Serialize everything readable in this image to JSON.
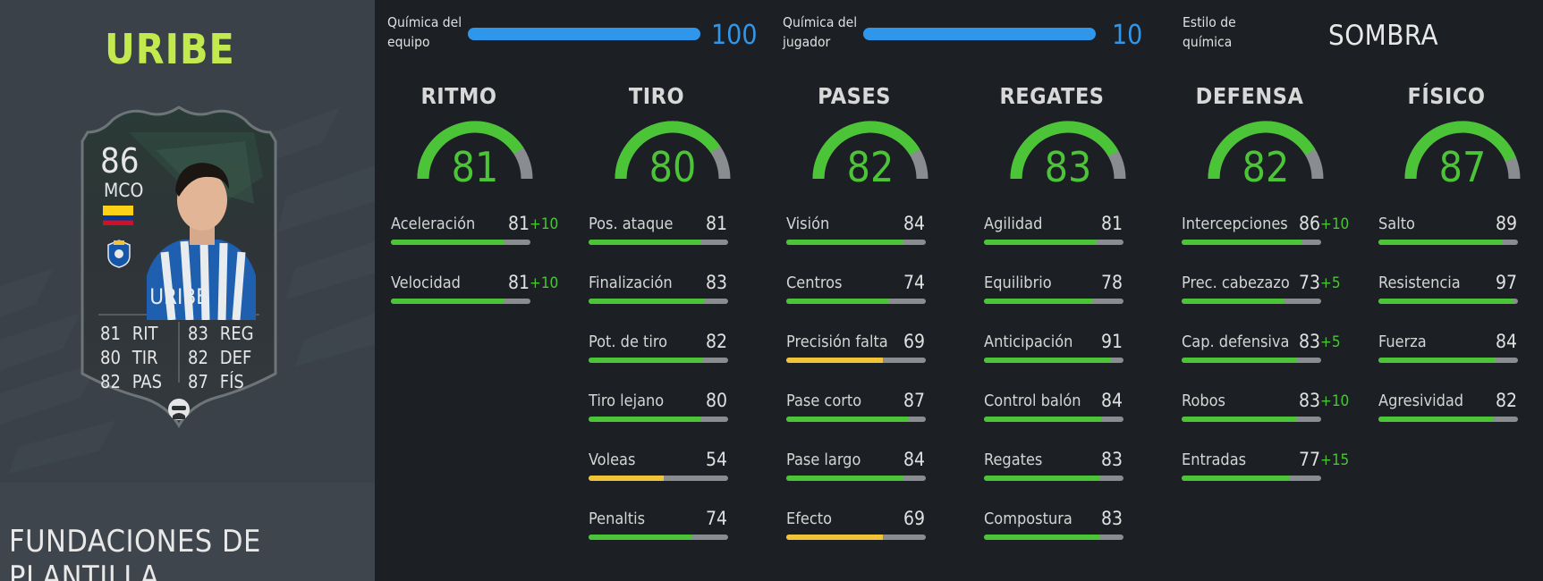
{
  "player": {
    "name": "URIBE",
    "program": "FUNDACIONES DE PLANTILLA",
    "card": {
      "rating": "86",
      "position": "MCO",
      "name": "URIBE",
      "stats": [
        {
          "value": "81",
          "label": "RIT"
        },
        {
          "value": "80",
          "label": "TIR"
        },
        {
          "value": "82",
          "label": "PAS"
        },
        {
          "value": "83",
          "label": "REG"
        },
        {
          "value": "82",
          "label": "DEF"
        },
        {
          "value": "87",
          "label": "FÍS"
        }
      ],
      "flag_colors": [
        "#fcd116",
        "#003893",
        "#ce1126"
      ]
    }
  },
  "chemistry": {
    "team_label_1": "Química del",
    "team_label_2": "equipo",
    "team_value": "100",
    "team_fraction": 1.0,
    "player_label_1": "Química del",
    "player_label_2": "jugador",
    "player_value": "10",
    "player_fraction": 1.0,
    "style_label_1": "Estilo de",
    "style_label_2": "química",
    "style_value": "SOMBRA"
  },
  "colors": {
    "accent_name": "#c2ea4f",
    "chem_blue": "#2f97eb",
    "green": "#4cc437",
    "yellow": "#f0c338",
    "track": "#8a8d90"
  },
  "groups": [
    {
      "title": "RITMO",
      "value": "81",
      "attributes": [
        {
          "label": "Aceleración",
          "value": "81",
          "bonus": "+10"
        },
        {
          "label": "Velocidad",
          "value": "81",
          "bonus": "+10"
        }
      ]
    },
    {
      "title": "TIRO",
      "value": "80",
      "attributes": [
        {
          "label": "Pos. ataque",
          "value": "81",
          "bonus": ""
        },
        {
          "label": "Finalización",
          "value": "83",
          "bonus": ""
        },
        {
          "label": "Pot. de tiro",
          "value": "82",
          "bonus": ""
        },
        {
          "label": "Tiro lejano",
          "value": "80",
          "bonus": ""
        },
        {
          "label": "Voleas",
          "value": "54",
          "bonus": ""
        },
        {
          "label": "Penaltis",
          "value": "74",
          "bonus": ""
        }
      ]
    },
    {
      "title": "PASES",
      "value": "82",
      "attributes": [
        {
          "label": "Visión",
          "value": "84",
          "bonus": ""
        },
        {
          "label": "Centros",
          "value": "74",
          "bonus": ""
        },
        {
          "label": "Precisión falta",
          "value": "69",
          "bonus": ""
        },
        {
          "label": "Pase corto",
          "value": "87",
          "bonus": ""
        },
        {
          "label": "Pase largo",
          "value": "84",
          "bonus": ""
        },
        {
          "label": "Efecto",
          "value": "69",
          "bonus": ""
        }
      ]
    },
    {
      "title": "REGATES",
      "value": "83",
      "attributes": [
        {
          "label": "Agilidad",
          "value": "81",
          "bonus": ""
        },
        {
          "label": "Equilibrio",
          "value": "78",
          "bonus": ""
        },
        {
          "label": "Anticipación",
          "value": "91",
          "bonus": ""
        },
        {
          "label": "Control balón",
          "value": "84",
          "bonus": ""
        },
        {
          "label": "Regates",
          "value": "83",
          "bonus": ""
        },
        {
          "label": "Compostura",
          "value": "83",
          "bonus": ""
        }
      ]
    },
    {
      "title": "DEFENSA",
      "value": "82",
      "attributes": [
        {
          "label": "Intercepciones",
          "value": "86",
          "bonus": "+10"
        },
        {
          "label": "Prec. cabezazo",
          "value": "73",
          "bonus": "+5"
        },
        {
          "label": "Cap. defensiva",
          "value": "83",
          "bonus": "+5"
        },
        {
          "label": "Robos",
          "value": "83",
          "bonus": "+10"
        },
        {
          "label": "Entradas",
          "value": "77",
          "bonus": "+15"
        }
      ]
    },
    {
      "title": "FÍSICO",
      "value": "87",
      "attributes": [
        {
          "label": "Salto",
          "value": "89",
          "bonus": ""
        },
        {
          "label": "Resistencia",
          "value": "97",
          "bonus": ""
        },
        {
          "label": "Fuerza",
          "value": "84",
          "bonus": ""
        },
        {
          "label": "Agresividad",
          "value": "82",
          "bonus": ""
        }
      ]
    }
  ]
}
